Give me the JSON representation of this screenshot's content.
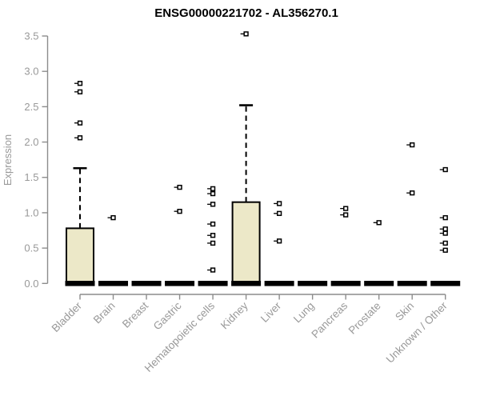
{
  "page": {
    "title": "ENSG00000221702 - AL356270.1"
  },
  "chart_data": {
    "type": "boxplot",
    "title": "ENSG00000221702 - AL356270.1",
    "xlabel": "",
    "ylabel": "Expression",
    "ylim": [
      0,
      3.5
    ],
    "yticks": [
      0,
      0.5,
      1,
      1.5,
      2,
      2.5,
      3,
      3.5
    ],
    "ytick_labels": [
      "0.0",
      "0.5",
      "1.0",
      "1.5",
      "2.0",
      "2.5",
      "3.0",
      "3.5"
    ],
    "grid": false,
    "legend": "none",
    "categories": [
      "Bladder",
      "Brain",
      "Breast",
      "Gastric",
      "Hematopoietic cells",
      "Kidney",
      "Liver",
      "Lung",
      "Pancreas",
      "Prostate",
      "Skin",
      "Unknown / Other"
    ],
    "series": [
      {
        "label": "Bladder",
        "q1": 0,
        "median": 0,
        "q3": 0.78,
        "whisker_low": 0,
        "whisker_high": 1.63,
        "outliers": [
          2.06,
          2.27,
          2.71,
          2.83
        ]
      },
      {
        "label": "Brain",
        "q1": 0,
        "median": 0,
        "q3": 0,
        "whisker_low": 0,
        "whisker_high": 0,
        "outliers": [
          0.93
        ]
      },
      {
        "label": "Breast",
        "q1": 0,
        "median": 0,
        "q3": 0,
        "whisker_low": 0,
        "whisker_high": 0,
        "outliers": []
      },
      {
        "label": "Gastric",
        "q1": 0,
        "median": 0,
        "q3": 0,
        "whisker_low": 0,
        "whisker_high": 0,
        "outliers": [
          1.02,
          1.36
        ]
      },
      {
        "label": "Hematopoietic cells",
        "q1": 0,
        "median": 0,
        "q3": 0,
        "whisker_low": 0,
        "whisker_high": 0,
        "outliers": [
          0.19,
          0.57,
          0.68,
          0.84,
          1.12,
          1.27,
          1.34
        ]
      },
      {
        "label": "Kidney",
        "q1": 0,
        "median": 0,
        "q3": 1.15,
        "whisker_low": 0,
        "whisker_high": 2.52,
        "outliers": [
          3.53
        ]
      },
      {
        "label": "Liver",
        "q1": 0,
        "median": 0,
        "q3": 0,
        "whisker_low": 0,
        "whisker_high": 0,
        "outliers": [
          0.6,
          0.99,
          1.13
        ]
      },
      {
        "label": "Lung",
        "q1": 0,
        "median": 0,
        "q3": 0,
        "whisker_low": 0,
        "whisker_high": 0,
        "outliers": []
      },
      {
        "label": "Pancreas",
        "q1": 0,
        "median": 0,
        "q3": 0,
        "whisker_low": 0,
        "whisker_high": 0,
        "outliers": [
          0.97,
          1.06
        ]
      },
      {
        "label": "Prostate",
        "q1": 0,
        "median": 0,
        "q3": 0,
        "whisker_low": 0,
        "whisker_high": 0,
        "outliers": [
          0.86
        ]
      },
      {
        "label": "Skin",
        "q1": 0,
        "median": 0,
        "q3": 0,
        "whisker_low": 0,
        "whisker_high": 0,
        "outliers": [
          1.28,
          1.96
        ]
      },
      {
        "label": "Unknown / Other",
        "q1": 0,
        "median": 0,
        "q3": 0,
        "whisker_low": 0,
        "whisker_high": 0,
        "outliers": [
          0.47,
          0.57,
          0.71,
          0.77,
          0.93,
          1.61
        ]
      }
    ],
    "colors": {
      "box_fill": "#ece8c8",
      "box_border": "#000000",
      "median": "#000000",
      "whisker": "#000000",
      "outlier": "#000000",
      "axis": "#8c8c8c",
      "tick_label": "#999999",
      "axis_label": "#999999",
      "title": "#000000",
      "background": "#ffffff"
    }
  }
}
